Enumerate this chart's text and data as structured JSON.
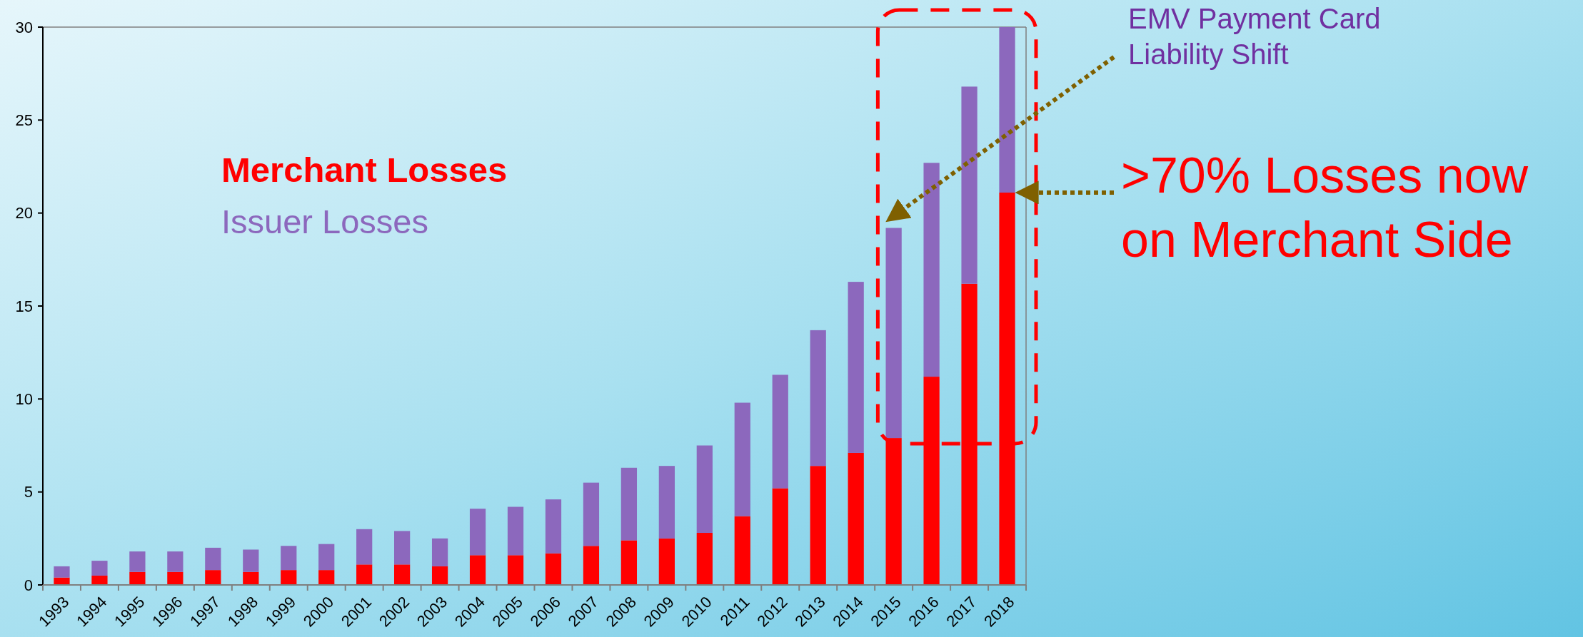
{
  "chart_data": {
    "type": "bar",
    "stacked": true,
    "categories": [
      "1993",
      "1994",
      "1995",
      "1996",
      "1997",
      "1998",
      "1999",
      "2000",
      "2001",
      "2002",
      "2003",
      "2004",
      "2005",
      "2006",
      "2007",
      "2008",
      "2009",
      "2010",
      "2011",
      "2012",
      "2013",
      "2014",
      "2015",
      "2016",
      "2017",
      "2018"
    ],
    "series": [
      {
        "name": "Merchant Losses",
        "color": "#ff0000",
        "values": [
          0.4,
          0.5,
          0.7,
          0.7,
          0.8,
          0.7,
          0.8,
          0.8,
          1.1,
          1.1,
          1.0,
          1.6,
          1.6,
          1.7,
          2.1,
          2.4,
          2.5,
          2.8,
          3.7,
          5.2,
          6.4,
          7.1,
          7.9,
          11.2,
          16.2,
          21.1
        ]
      },
      {
        "name": "Issuer Losses",
        "color": "#8c68bd",
        "values": [
          0.6,
          0.8,
          1.1,
          1.1,
          1.2,
          1.2,
          1.3,
          1.4,
          1.9,
          1.8,
          1.5,
          2.5,
          2.6,
          2.9,
          3.4,
          3.9,
          3.9,
          4.7,
          6.1,
          6.1,
          7.3,
          9.2,
          11.3,
          11.5,
          10.6,
          8.9
        ]
      }
    ],
    "ylim": [
      0,
      30
    ],
    "yticks": [
      0,
      5,
      10,
      15,
      20,
      25,
      30
    ],
    "grid": false,
    "legend": "top left",
    "annotations": [
      "EMV Payment Card Liability Shift",
      ">70% Losses now on Merchant Side"
    ]
  }
}
